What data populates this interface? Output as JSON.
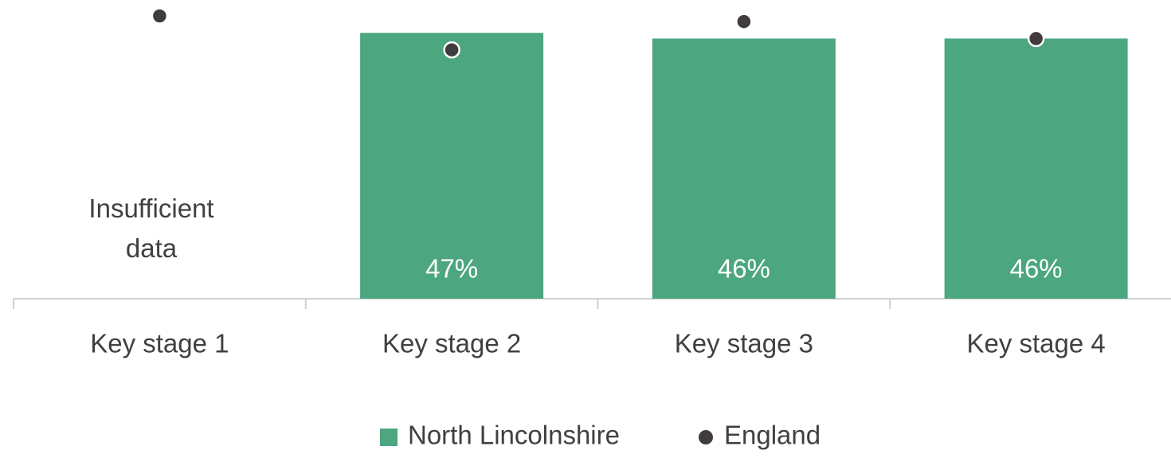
{
  "chart_data": {
    "type": "bar",
    "categories": [
      "Key stage 1",
      "Key stage 2",
      "Key stage 3",
      "Key stage 4"
    ],
    "series": [
      {
        "name": "North Lincolnshire",
        "color": "#4ca67f",
        "values": [
          null,
          47,
          46,
          46
        ],
        "value_labels": [
          null,
          "47%",
          "46%",
          "46%"
        ]
      },
      {
        "name": "England",
        "color": "#403b3d",
        "type": "dot",
        "values": [
          50,
          44,
          49,
          46
        ]
      }
    ],
    "annotations": [
      "Insufficient data"
    ],
    "legend": "bottom"
  }
}
